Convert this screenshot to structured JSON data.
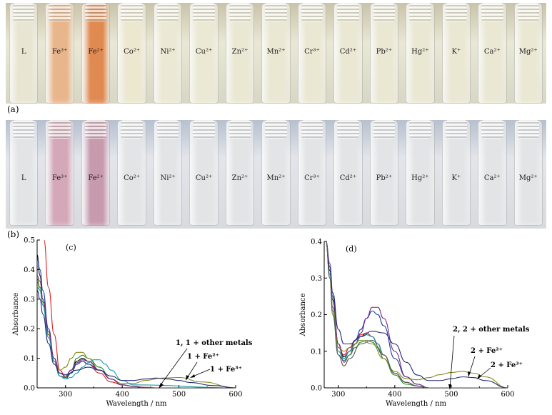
{
  "panels": {
    "a": "(a)",
    "b": "(b)",
    "c": "(c)",
    "d": "(d)"
  },
  "vials": [
    {
      "label": "L",
      "a_color": "#e8e6d2",
      "b_color": "#e2e4e6"
    },
    {
      "label": "Fe³⁺",
      "a_color": "#e9b68c",
      "b_color": "#d4a8b8"
    },
    {
      "label": "Fe²⁺",
      "a_color": "#e08a52",
      "b_color": "#c79aae"
    },
    {
      "label": "Co²⁺",
      "a_color": "#ece8cf",
      "b_color": "#e2e4e6"
    },
    {
      "label": "Ni²⁺",
      "a_color": "#ebe9d3",
      "b_color": "#e2e4e6"
    },
    {
      "label": "Cu²⁺",
      "a_color": "#ebe9d3",
      "b_color": "#e2e4e6"
    },
    {
      "label": "Zn²⁺",
      "a_color": "#eae8d3",
      "b_color": "#e2e4e6"
    },
    {
      "label": "Mn²⁺",
      "a_color": "#eae8d3",
      "b_color": "#e2e4e6"
    },
    {
      "label": "Cr³⁺",
      "a_color": "#eae8d3",
      "b_color": "#e2e4e6"
    },
    {
      "label": "Cd²⁺",
      "a_color": "#eae8d3",
      "b_color": "#e2e4e6"
    },
    {
      "label": "Pb²⁺",
      "a_color": "#eae8d3",
      "b_color": "#e2e4e6"
    },
    {
      "label": "Hg²⁺",
      "a_color": "#eae8d3",
      "b_color": "#e2e4e6"
    },
    {
      "label": "K⁺",
      "a_color": "#eae8d3",
      "b_color": "#e2e4e6"
    },
    {
      "label": "Ca²⁺",
      "a_color": "#eae8d3",
      "b_color": "#e2e4e6"
    },
    {
      "label": "Mg²⁺",
      "a_color": "#eae8d3",
      "b_color": "#e2e4e6"
    }
  ],
  "chart_data": [
    {
      "type": "line",
      "panel": "(c)",
      "xlabel": "Wavelength / nm",
      "ylabel": "Absorbance",
      "xlim": [
        250,
        600
      ],
      "ylim": [
        0,
        0.5
      ],
      "xticks": [
        "300",
        "400",
        "500",
        "600"
      ],
      "yticks": [
        "0.0",
        "0.1",
        "0.2",
        "0.3",
        "0.4",
        "0.5"
      ],
      "annotations": [
        "1, 1 + other metals",
        "1 + Fe²⁺",
        "1 + Fe³⁺"
      ],
      "series": [
        {
          "color": "#e02020",
          "x": [
            262,
            270,
            280,
            290,
            300,
            310,
            320,
            330,
            340,
            360,
            380,
            400,
            420,
            440,
            460,
            600
          ],
          "y": [
            0.5,
            0.34,
            0.18,
            0.06,
            0.035,
            0.05,
            0.08,
            0.09,
            0.08,
            0.05,
            0.02,
            0.01,
            0.005,
            0.002,
            0,
            0
          ]
        },
        {
          "color": "#000000",
          "x": [
            250,
            255,
            260,
            270,
            280,
            290,
            300,
            310,
            320,
            330,
            340,
            360,
            380,
            400,
            420,
            440,
            600
          ],
          "y": [
            0.45,
            0.38,
            0.3,
            0.18,
            0.09,
            0.04,
            0.035,
            0.06,
            0.09,
            0.1,
            0.09,
            0.06,
            0.03,
            0.01,
            0.005,
            0,
            0
          ]
        },
        {
          "color": "#1a3fa0",
          "x": [
            250,
            255,
            260,
            270,
            280,
            290,
            300,
            310,
            320,
            330,
            340,
            360,
            380,
            400,
            420,
            440,
            600
          ],
          "y": [
            0.44,
            0.4,
            0.33,
            0.2,
            0.1,
            0.04,
            0.03,
            0.05,
            0.08,
            0.09,
            0.08,
            0.06,
            0.03,
            0.01,
            0.005,
            0,
            0
          ]
        },
        {
          "color": "#2a8a2a",
          "x": [
            250,
            255,
            260,
            270,
            280,
            290,
            300,
            310,
            320,
            330,
            340,
            360,
            380,
            400,
            420,
            440,
            600
          ],
          "y": [
            0.37,
            0.34,
            0.29,
            0.18,
            0.09,
            0.04,
            0.035,
            0.06,
            0.1,
            0.11,
            0.1,
            0.07,
            0.03,
            0.01,
            0.005,
            0,
            0
          ]
        },
        {
          "color": "#8a8a20",
          "x": [
            250,
            255,
            260,
            270,
            280,
            290,
            300,
            310,
            320,
            330,
            340,
            360,
            380,
            400,
            420,
            440,
            470,
            500,
            540,
            600
          ],
          "y": [
            0.36,
            0.33,
            0.28,
            0.18,
            0.1,
            0.06,
            0.07,
            0.1,
            0.12,
            0.12,
            0.1,
            0.06,
            0.03,
            0.015,
            0.015,
            0.025,
            0.033,
            0.035,
            0.02,
            0
          ]
        },
        {
          "color": "#1a9aa8",
          "x": [
            250,
            255,
            260,
            270,
            280,
            290,
            300,
            310,
            320,
            330,
            340,
            350,
            360,
            370,
            380,
            400,
            420,
            600
          ],
          "y": [
            0.34,
            0.33,
            0.28,
            0.17,
            0.09,
            0.04,
            0.03,
            0.035,
            0.05,
            0.07,
            0.085,
            0.095,
            0.095,
            0.08,
            0.06,
            0.025,
            0.01,
            0
          ]
        },
        {
          "color": "#7a2a8a",
          "x": [
            250,
            255,
            260,
            270,
            280,
            290,
            300,
            310,
            320,
            330,
            340,
            360,
            380,
            400,
            420,
            440,
            600
          ],
          "y": [
            0.38,
            0.36,
            0.3,
            0.19,
            0.1,
            0.05,
            0.04,
            0.06,
            0.085,
            0.095,
            0.09,
            0.06,
            0.03,
            0.01,
            0.005,
            0,
            0
          ]
        },
        {
          "color": "#202a70",
          "x": [
            250,
            255,
            260,
            270,
            280,
            290,
            300,
            320,
            340,
            360,
            380,
            400,
            420,
            440,
            460,
            480,
            500,
            520,
            560,
            600
          ],
          "y": [
            0.33,
            0.3,
            0.25,
            0.15,
            0.08,
            0.05,
            0.045,
            0.06,
            0.07,
            0.06,
            0.04,
            0.025,
            0.025,
            0.03,
            0.033,
            0.03,
            0.025,
            0.018,
            0.008,
            0
          ]
        }
      ]
    },
    {
      "type": "line",
      "panel": "(d)",
      "xlabel": "Wavelength / nm",
      "ylabel": "Absorbance",
      "xlim": [
        275,
        600
      ],
      "ylim": [
        0,
        0.4
      ],
      "xticks": [
        "300",
        "400",
        "500",
        "600"
      ],
      "yticks": [
        "0.0",
        "0.1",
        "0.2",
        "0.3",
        "0.4"
      ],
      "annotations": [
        "2, 2 + other metals",
        "2 + Fe²⁺",
        "2 + Fe³⁺"
      ],
      "series": [
        {
          "color": "#000000",
          "x": [
            278,
            285,
            290,
            300,
            310,
            320,
            330,
            340,
            350,
            360,
            370,
            380,
            400,
            420,
            440,
            460,
            600
          ],
          "y": [
            0.4,
            0.32,
            0.24,
            0.12,
            0.085,
            0.1,
            0.12,
            0.14,
            0.15,
            0.14,
            0.12,
            0.09,
            0.04,
            0.015,
            0.005,
            0,
            0
          ]
        },
        {
          "color": "#e02020",
          "x": [
            278,
            285,
            290,
            300,
            310,
            320,
            330,
            340,
            350,
            360,
            370,
            380,
            400,
            420,
            440,
            460,
            600
          ],
          "y": [
            0.4,
            0.3,
            0.22,
            0.11,
            0.09,
            0.11,
            0.13,
            0.145,
            0.15,
            0.14,
            0.12,
            0.09,
            0.04,
            0.015,
            0.005,
            0,
            0
          ]
        },
        {
          "color": "#1a3fa0",
          "x": [
            278,
            285,
            290,
            300,
            310,
            320,
            330,
            340,
            350,
            360,
            370,
            380,
            400,
            420,
            440,
            460,
            600
          ],
          "y": [
            0.4,
            0.33,
            0.25,
            0.12,
            0.08,
            0.1,
            0.13,
            0.16,
            0.19,
            0.21,
            0.2,
            0.17,
            0.08,
            0.03,
            0.01,
            0,
            0
          ]
        },
        {
          "color": "#7a2a8a",
          "x": [
            278,
            285,
            290,
            300,
            310,
            320,
            330,
            340,
            350,
            360,
            370,
            380,
            400,
            420,
            440,
            460,
            600
          ],
          "y": [
            0.4,
            0.34,
            0.26,
            0.12,
            0.07,
            0.09,
            0.12,
            0.15,
            0.19,
            0.22,
            0.22,
            0.19,
            0.1,
            0.03,
            0.01,
            0,
            0
          ]
        },
        {
          "color": "#2a8a2a",
          "x": [
            278,
            285,
            290,
            300,
            310,
            320,
            330,
            340,
            350,
            360,
            370,
            380,
            400,
            420,
            440,
            460,
            600
          ],
          "y": [
            0.4,
            0.3,
            0.2,
            0.09,
            0.075,
            0.09,
            0.11,
            0.125,
            0.13,
            0.125,
            0.11,
            0.08,
            0.035,
            0.01,
            0.005,
            0,
            0
          ]
        },
        {
          "color": "#1a9aa8",
          "x": [
            278,
            285,
            290,
            300,
            310,
            320,
            330,
            340,
            350,
            360,
            370,
            380,
            400,
            420,
            440,
            460,
            600
          ],
          "y": [
            0.4,
            0.31,
            0.22,
            0.1,
            0.08,
            0.1,
            0.12,
            0.14,
            0.145,
            0.14,
            0.12,
            0.09,
            0.04,
            0.015,
            0.005,
            0,
            0
          ]
        },
        {
          "color": "#8a8a20",
          "x": [
            278,
            285,
            290,
            300,
            310,
            320,
            340,
            360,
            380,
            400,
            420,
            440,
            460,
            480,
            500,
            520,
            540,
            560,
            600
          ],
          "y": [
            0.4,
            0.3,
            0.22,
            0.11,
            0.1,
            0.11,
            0.13,
            0.12,
            0.08,
            0.045,
            0.025,
            0.022,
            0.028,
            0.036,
            0.042,
            0.045,
            0.04,
            0.03,
            0
          ]
        },
        {
          "color": "#202a70",
          "x": [
            278,
            285,
            290,
            300,
            310,
            320,
            340,
            360,
            380,
            400,
            420,
            440,
            460,
            480,
            500,
            520,
            540,
            560,
            600
          ],
          "y": [
            0.4,
            0.33,
            0.26,
            0.16,
            0.12,
            0.12,
            0.14,
            0.155,
            0.15,
            0.12,
            0.07,
            0.035,
            0.02,
            0.02,
            0.025,
            0.03,
            0.028,
            0.02,
            0
          ]
        },
        {
          "color": "#5a5a5a",
          "x": [
            278,
            285,
            290,
            300,
            310,
            320,
            340,
            360,
            380,
            400,
            420,
            440,
            460,
            600
          ],
          "y": [
            0.4,
            0.3,
            0.21,
            0.09,
            0.06,
            0.08,
            0.12,
            0.13,
            0.09,
            0.04,
            0.015,
            0.005,
            0,
            0
          ]
        }
      ]
    }
  ]
}
